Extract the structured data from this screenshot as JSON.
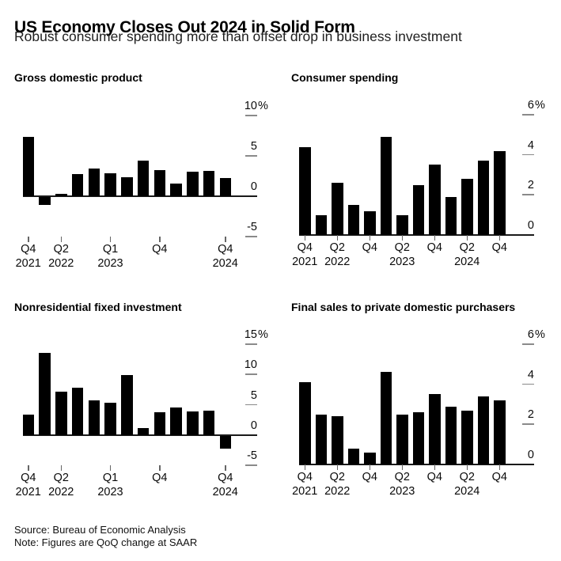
{
  "header": {
    "title": "US Economy Closes Out 2024 in Solid Form",
    "subtitle": "Robust consumer spending more than offset drop in business investment"
  },
  "footer": {
    "source": "Source: Bureau of Economic Analysis",
    "note": "Note: Figures are QoQ change at SAAR"
  },
  "colors": {
    "background": "#ffffff",
    "bar": "#000000",
    "axis_line": "#1a1a1a",
    "grid_dash": "#8a8a8a",
    "x_tick": "#666666",
    "text": "#000000"
  },
  "chart_data": [
    {
      "id": "gdp",
      "type": "bar",
      "title": "Gross domestic product",
      "unit_suffix": "%",
      "categories": [
        "Q4 2021",
        "Q1 2022",
        "Q2 2022",
        "Q3 2022",
        "Q4 2022",
        "Q1 2023",
        "Q2 2023",
        "Q3 2023",
        "Q4 2023",
        "Q1 2024",
        "Q2 2024",
        "Q3 2024",
        "Q4 2024"
      ],
      "values": [
        7.4,
        -1.0,
        0.3,
        2.7,
        3.4,
        2.8,
        2.4,
        4.4,
        3.2,
        1.6,
        3.0,
        3.1,
        2.3
      ],
      "ylim": [
        -5,
        10
      ],
      "grid": false,
      "legend": "none",
      "yticks": [
        {
          "value": 10,
          "label": "10%"
        },
        {
          "value": 5,
          "label": "5"
        },
        {
          "value": 0,
          "label": "0"
        },
        {
          "value": -5,
          "label": "-5"
        }
      ],
      "xticks": [
        {
          "index": 0,
          "quarter": "Q4",
          "year": "2021"
        },
        {
          "index": 2,
          "quarter": "Q2",
          "year": "2022"
        },
        {
          "index": 5,
          "quarter": "Q1",
          "year": "2023"
        },
        {
          "index": 8,
          "quarter": "Q4",
          "year": ""
        },
        {
          "index": 12,
          "quarter": "Q4",
          "year": "2024"
        }
      ]
    },
    {
      "id": "consumer",
      "type": "bar",
      "title": "Consumer spending",
      "unit_suffix": "%",
      "categories": [
        "Q4 2021",
        "Q1 2022",
        "Q2 2022",
        "Q3 2022",
        "Q4 2022",
        "Q1 2023",
        "Q2 2023",
        "Q3 2023",
        "Q4 2023",
        "Q1 2024",
        "Q2 2024",
        "Q3 2024",
        "Q4 2024"
      ],
      "values": [
        4.4,
        1.0,
        2.6,
        1.5,
        1.2,
        4.9,
        1.0,
        2.5,
        3.5,
        1.9,
        2.8,
        3.7,
        4.2
      ],
      "ylim": [
        0,
        6
      ],
      "grid": false,
      "legend": "none",
      "yticks": [
        {
          "value": 6,
          "label": "6%"
        },
        {
          "value": 4,
          "label": "4"
        },
        {
          "value": 2,
          "label": "2"
        },
        {
          "value": 0,
          "label": "0"
        }
      ],
      "xticks": [
        {
          "index": 0,
          "quarter": "Q4",
          "year": "2021"
        },
        {
          "index": 2,
          "quarter": "Q2",
          "year": "2022"
        },
        {
          "index": 4,
          "quarter": "Q4",
          "year": ""
        },
        {
          "index": 6,
          "quarter": "Q2",
          "year": "2023"
        },
        {
          "index": 8,
          "quarter": "Q4",
          "year": ""
        },
        {
          "index": 10,
          "quarter": "Q2",
          "year": "2024"
        },
        {
          "index": 12,
          "quarter": "Q4",
          "year": ""
        }
      ]
    },
    {
      "id": "nonres",
      "type": "bar",
      "title": "Nonresidential fixed investment",
      "unit_suffix": "%",
      "categories": [
        "Q4 2021",
        "Q1 2022",
        "Q2 2022",
        "Q3 2022",
        "Q4 2022",
        "Q1 2023",
        "Q2 2023",
        "Q3 2023",
        "Q4 2023",
        "Q1 2024",
        "Q2 2024",
        "Q3 2024",
        "Q4 2024"
      ],
      "values": [
        3.4,
        13.6,
        7.2,
        7.8,
        5.7,
        5.3,
        9.9,
        1.1,
        3.8,
        4.5,
        3.9,
        4.0,
        -2.2
      ],
      "ylim": [
        -5,
        15
      ],
      "grid": false,
      "legend": "none",
      "yticks": [
        {
          "value": 15,
          "label": "15%"
        },
        {
          "value": 10,
          "label": "10"
        },
        {
          "value": 5,
          "label": "5"
        },
        {
          "value": 0,
          "label": "0"
        },
        {
          "value": -5,
          "label": "-5"
        }
      ],
      "xticks": [
        {
          "index": 0,
          "quarter": "Q4",
          "year": "2021"
        },
        {
          "index": 2,
          "quarter": "Q2",
          "year": "2022"
        },
        {
          "index": 5,
          "quarter": "Q1",
          "year": "2023"
        },
        {
          "index": 8,
          "quarter": "Q4",
          "year": ""
        },
        {
          "index": 12,
          "quarter": "Q4",
          "year": "2024"
        }
      ]
    },
    {
      "id": "final",
      "type": "bar",
      "title": "Final sales to private domestic purchasers",
      "unit_suffix": "%",
      "categories": [
        "Q4 2021",
        "Q1 2022",
        "Q2 2022",
        "Q3 2022",
        "Q4 2022",
        "Q1 2023",
        "Q2 2023",
        "Q3 2023",
        "Q4 2023",
        "Q1 2024",
        "Q2 2024",
        "Q3 2024",
        "Q4 2024"
      ],
      "values": [
        4.1,
        2.5,
        2.4,
        0.8,
        0.6,
        4.6,
        2.5,
        2.6,
        3.5,
        2.9,
        2.7,
        3.4,
        3.2
      ],
      "ylim": [
        0,
        6
      ],
      "grid": false,
      "legend": "none",
      "yticks": [
        {
          "value": 6,
          "label": "6%"
        },
        {
          "value": 4,
          "label": "4"
        },
        {
          "value": 2,
          "label": "2"
        },
        {
          "value": 0,
          "label": "0"
        }
      ],
      "xticks": [
        {
          "index": 0,
          "quarter": "Q4",
          "year": "2021"
        },
        {
          "index": 2,
          "quarter": "Q2",
          "year": "2022"
        },
        {
          "index": 4,
          "quarter": "Q4",
          "year": ""
        },
        {
          "index": 6,
          "quarter": "Q2",
          "year": "2023"
        },
        {
          "index": 8,
          "quarter": "Q4",
          "year": ""
        },
        {
          "index": 10,
          "quarter": "Q2",
          "year": "2024"
        },
        {
          "index": 12,
          "quarter": "Q4",
          "year": ""
        }
      ]
    }
  ]
}
